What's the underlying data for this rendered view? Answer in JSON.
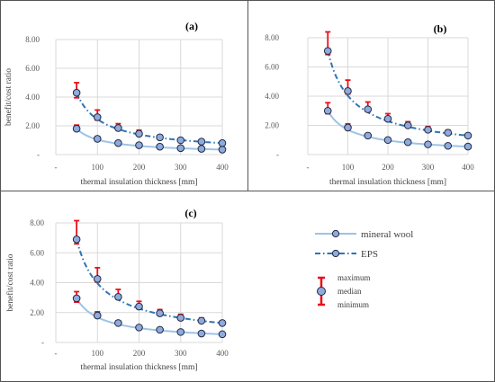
{
  "chart_data": [
    {
      "type": "line",
      "panel_label": "(a)",
      "xlabel": "thermal insulation thickness [mm]",
      "ylabel": "benefit/cost ratio",
      "x_ticks": [
        "-",
        "100",
        "200",
        "300",
        "400"
      ],
      "y_ticks": [
        "-",
        "2.00",
        "4.00",
        "6.00",
        "8.00"
      ],
      "xlim": [
        0,
        400
      ],
      "ylim": [
        0,
        8
      ],
      "grid": true,
      "x": [
        50,
        100,
        150,
        200,
        250,
        300,
        350,
        400
      ],
      "series": [
        {
          "name": "mineral wool",
          "median": [
            1.8,
            1.1,
            0.8,
            0.65,
            0.55,
            0.45,
            0.4,
            0.35
          ],
          "min": [
            1.65,
            1.0,
            0.72,
            0.6,
            0.5,
            0.42,
            0.37,
            0.32
          ],
          "max": [
            2.05,
            1.25,
            0.9,
            0.72,
            0.6,
            0.5,
            0.44,
            0.38
          ]
        },
        {
          "name": "EPS",
          "median": [
            4.3,
            2.6,
            1.85,
            1.45,
            1.2,
            1.0,
            0.9,
            0.8
          ],
          "min": [
            3.95,
            2.4,
            1.7,
            1.35,
            1.1,
            0.93,
            0.83,
            0.74
          ],
          "max": [
            5.0,
            3.1,
            2.15,
            1.7,
            1.35,
            1.12,
            0.98,
            0.88
          ]
        }
      ]
    },
    {
      "type": "line",
      "panel_label": "(b)",
      "xlabel": "thermal insulation thickness [mm]",
      "ylabel": "",
      "x_ticks": [
        "-",
        "100",
        "200",
        "300",
        "400"
      ],
      "y_ticks": [
        "-",
        "2.00",
        "4.00",
        "6.00",
        "8.00"
      ],
      "xlim": [
        0,
        400
      ],
      "ylim": [
        0,
        8
      ],
      "grid": true,
      "x": [
        50,
        100,
        150,
        200,
        250,
        300,
        350,
        400
      ],
      "series": [
        {
          "name": "mineral wool",
          "median": [
            3.0,
            1.85,
            1.3,
            1.0,
            0.85,
            0.7,
            0.6,
            0.55
          ],
          "min": [
            2.8,
            1.7,
            1.2,
            0.93,
            0.78,
            0.65,
            0.56,
            0.5
          ],
          "max": [
            3.55,
            2.1,
            1.45,
            1.1,
            0.92,
            0.76,
            0.66,
            0.6
          ]
        },
        {
          "name": "EPS",
          "median": [
            7.1,
            4.35,
            3.1,
            2.45,
            2.0,
            1.7,
            1.5,
            1.3
          ],
          "min": [
            6.85,
            4.15,
            2.95,
            2.3,
            1.88,
            1.6,
            1.42,
            1.22
          ],
          "max": [
            8.4,
            5.1,
            3.6,
            2.8,
            2.25,
            1.92,
            1.68,
            1.45
          ]
        }
      ]
    },
    {
      "type": "line",
      "panel_label": "(c)",
      "xlabel": "thermal insulation thickness [mm]",
      "ylabel": "benefit/cost ratio",
      "x_ticks": [
        "-",
        "100",
        "200",
        "300",
        "400"
      ],
      "y_ticks": [
        "-",
        "2.00",
        "4.00",
        "6.00",
        "8.00"
      ],
      "xlim": [
        0,
        400
      ],
      "ylim": [
        0,
        8
      ],
      "grid": true,
      "x": [
        50,
        100,
        150,
        200,
        250,
        300,
        350,
        400
      ],
      "series": [
        {
          "name": "mineral wool",
          "median": [
            2.95,
            1.8,
            1.3,
            1.0,
            0.85,
            0.7,
            0.6,
            0.55
          ],
          "min": [
            2.7,
            1.65,
            1.2,
            0.93,
            0.78,
            0.64,
            0.55,
            0.5
          ],
          "max": [
            3.4,
            2.05,
            1.45,
            1.1,
            0.92,
            0.76,
            0.66,
            0.6
          ]
        },
        {
          "name": "EPS",
          "median": [
            6.9,
            4.25,
            3.05,
            2.4,
            1.95,
            1.65,
            1.45,
            1.3
          ],
          "min": [
            6.6,
            4.05,
            2.9,
            2.25,
            1.85,
            1.56,
            1.38,
            1.22
          ],
          "max": [
            8.15,
            5.0,
            3.55,
            2.75,
            2.2,
            1.88,
            1.64,
            1.45
          ]
        }
      ]
    }
  ],
  "legend": {
    "mineral_wool": "mineral wool",
    "eps": "EPS",
    "maximum": "maximum",
    "median": "median",
    "minimum": "minimum"
  },
  "colors": {
    "mineral_wool_line": "#9dc3e6",
    "eps_line": "#2e75b6",
    "marker_fill": "#8faadc",
    "marker_edge": "#1f2a44",
    "error_bar": "#e8101a",
    "grid": "#d9d9d9",
    "axis_text": "#595959"
  }
}
